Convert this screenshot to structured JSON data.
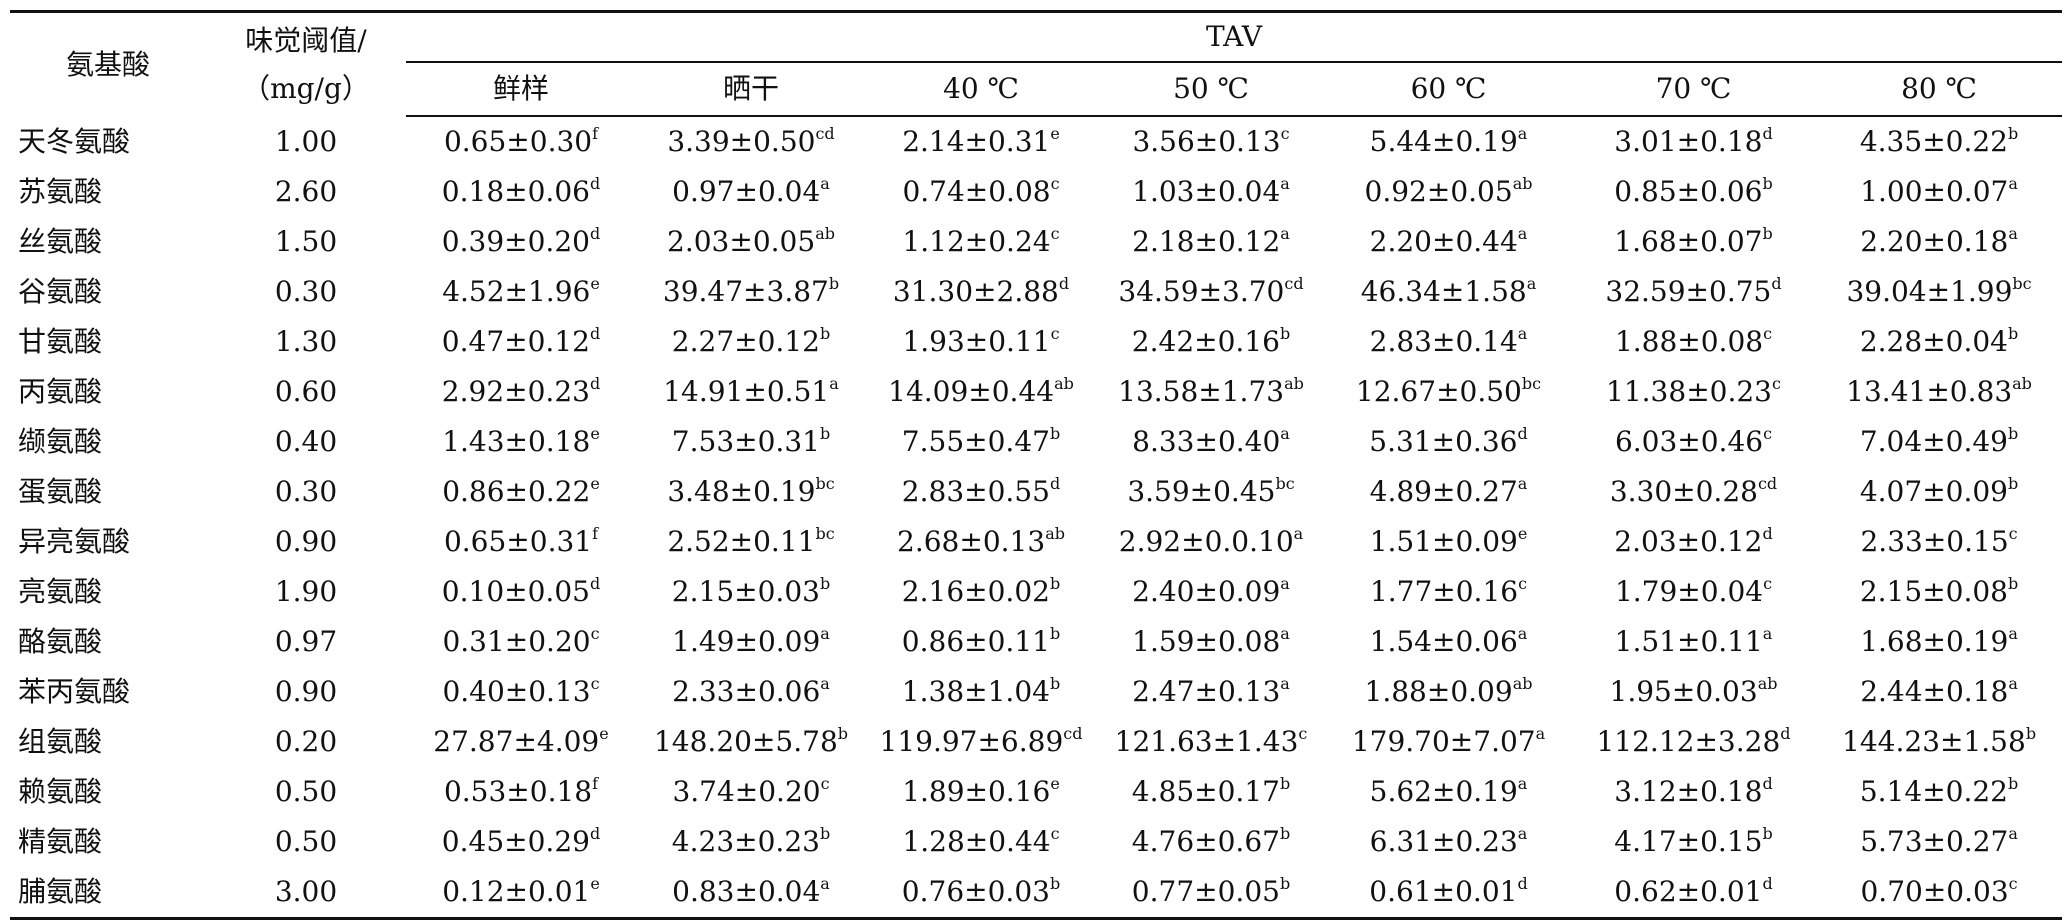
{
  "headers": {
    "amino_acid": "氨基酸",
    "threshold_line1": "味觉阈值/",
    "threshold_line2": "（mg/g）",
    "tav": "TAV",
    "conditions": [
      "鲜样",
      "晒干",
      "40 ℃",
      "50 ℃",
      "60 ℃",
      "70 ℃",
      "80 ℃"
    ]
  },
  "rows": [
    {
      "name": "天冬氨酸",
      "threshold": "1.00",
      "cells": [
        {
          "v": "0.65±0.30",
          "s": "f"
        },
        {
          "v": "3.39±0.50",
          "s": "cd"
        },
        {
          "v": "2.14±0.31",
          "s": "e"
        },
        {
          "v": "3.56±0.13",
          "s": "c"
        },
        {
          "v": "5.44±0.19",
          "s": "a"
        },
        {
          "v": "3.01±0.18",
          "s": "d"
        },
        {
          "v": "4.35±0.22",
          "s": "b"
        }
      ]
    },
    {
      "name": "苏氨酸",
      "threshold": "2.60",
      "cells": [
        {
          "v": "0.18±0.06",
          "s": "d"
        },
        {
          "v": "0.97±0.04",
          "s": "a"
        },
        {
          "v": "0.74±0.08",
          "s": "c"
        },
        {
          "v": "1.03±0.04",
          "s": "a"
        },
        {
          "v": "0.92±0.05",
          "s": "ab"
        },
        {
          "v": "0.85±0.06",
          "s": "b"
        },
        {
          "v": "1.00±0.07",
          "s": "a"
        }
      ]
    },
    {
      "name": "丝氨酸",
      "threshold": "1.50",
      "cells": [
        {
          "v": "0.39±0.20",
          "s": "d"
        },
        {
          "v": "2.03±0.05",
          "s": "ab"
        },
        {
          "v": "1.12±0.24",
          "s": "c"
        },
        {
          "v": "2.18±0.12",
          "s": "a"
        },
        {
          "v": "2.20±0.44",
          "s": "a"
        },
        {
          "v": "1.68±0.07",
          "s": "b"
        },
        {
          "v": "2.20±0.18",
          "s": "a"
        }
      ]
    },
    {
      "name": "谷氨酸",
      "threshold": "0.30",
      "cells": [
        {
          "v": "4.52±1.96",
          "s": "e"
        },
        {
          "v": "39.47±3.87",
          "s": "b"
        },
        {
          "v": "31.30±2.88",
          "s": "d"
        },
        {
          "v": "34.59±3.70",
          "s": "cd"
        },
        {
          "v": "46.34±1.58",
          "s": "a"
        },
        {
          "v": "32.59±0.75",
          "s": "d"
        },
        {
          "v": "39.04±1.99",
          "s": "bc"
        }
      ]
    },
    {
      "name": "甘氨酸",
      "threshold": "1.30",
      "cells": [
        {
          "v": "0.47±0.12",
          "s": "d"
        },
        {
          "v": "2.27±0.12",
          "s": "b"
        },
        {
          "v": "1.93±0.11",
          "s": "c"
        },
        {
          "v": "2.42±0.16",
          "s": "b"
        },
        {
          "v": "2.83±0.14",
          "s": "a"
        },
        {
          "v": "1.88±0.08",
          "s": "c"
        },
        {
          "v": "2.28±0.04",
          "s": "b"
        }
      ]
    },
    {
      "name": "丙氨酸",
      "threshold": "0.60",
      "cells": [
        {
          "v": "2.92±0.23",
          "s": "d"
        },
        {
          "v": "14.91±0.51",
          "s": "a"
        },
        {
          "v": "14.09±0.44",
          "s": "ab"
        },
        {
          "v": "13.58±1.73",
          "s": "ab"
        },
        {
          "v": "12.67±0.50",
          "s": "bc"
        },
        {
          "v": "11.38±0.23",
          "s": "c"
        },
        {
          "v": "13.41±0.83",
          "s": "ab"
        }
      ]
    },
    {
      "name": "缬氨酸",
      "threshold": "0.40",
      "cells": [
        {
          "v": "1.43±0.18",
          "s": "e"
        },
        {
          "v": "7.53±0.31",
          "s": "b"
        },
        {
          "v": "7.55±0.47",
          "s": "b"
        },
        {
          "v": "8.33±0.40",
          "s": "a"
        },
        {
          "v": "5.31±0.36",
          "s": "d"
        },
        {
          "v": "6.03±0.46",
          "s": "c"
        },
        {
          "v": "7.04±0.49",
          "s": "b"
        }
      ]
    },
    {
      "name": "蛋氨酸",
      "threshold": "0.30",
      "cells": [
        {
          "v": "0.86±0.22",
          "s": "e"
        },
        {
          "v": "3.48±0.19",
          "s": "bc"
        },
        {
          "v": "2.83±0.55",
          "s": "d"
        },
        {
          "v": "3.59±0.45",
          "s": "bc"
        },
        {
          "v": "4.89±0.27",
          "s": "a"
        },
        {
          "v": "3.30±0.28",
          "s": "cd"
        },
        {
          "v": "4.07±0.09",
          "s": "b"
        }
      ]
    },
    {
      "name": "异亮氨酸",
      "threshold": "0.90",
      "cells": [
        {
          "v": "0.65±0.31",
          "s": "f"
        },
        {
          "v": "2.52±0.11",
          "s": "bc"
        },
        {
          "v": "2.68±0.13",
          "s": "ab"
        },
        {
          "v": "2.92±0.0.10",
          "s": "a"
        },
        {
          "v": "1.51±0.09",
          "s": "e"
        },
        {
          "v": "2.03±0.12",
          "s": "d"
        },
        {
          "v": "2.33±0.15",
          "s": "c"
        }
      ]
    },
    {
      "name": "亮氨酸",
      "threshold": "1.90",
      "cells": [
        {
          "v": "0.10±0.05",
          "s": "d"
        },
        {
          "v": "2.15±0.03",
          "s": "b"
        },
        {
          "v": "2.16±0.02",
          "s": "b"
        },
        {
          "v": "2.40±0.09",
          "s": "a"
        },
        {
          "v": "1.77±0.16",
          "s": "c"
        },
        {
          "v": "1.79±0.04",
          "s": "c"
        },
        {
          "v": "2.15±0.08",
          "s": "b"
        }
      ]
    },
    {
      "name": "酪氨酸",
      "threshold": "0.97",
      "cells": [
        {
          "v": "0.31±0.20",
          "s": "c"
        },
        {
          "v": "1.49±0.09",
          "s": "a"
        },
        {
          "v": "0.86±0.11",
          "s": "b"
        },
        {
          "v": "1.59±0.08",
          "s": "a"
        },
        {
          "v": "1.54±0.06",
          "s": "a"
        },
        {
          "v": "1.51±0.11",
          "s": "a"
        },
        {
          "v": "1.68±0.19",
          "s": "a"
        }
      ]
    },
    {
      "name": "苯丙氨酸",
      "threshold": "0.90",
      "cells": [
        {
          "v": "0.40±0.13",
          "s": "c"
        },
        {
          "v": "2.33±0.06",
          "s": "a"
        },
        {
          "v": "1.38±1.04",
          "s": "b"
        },
        {
          "v": "2.47±0.13",
          "s": "a"
        },
        {
          "v": "1.88±0.09",
          "s": "ab"
        },
        {
          "v": "1.95±0.03",
          "s": "ab"
        },
        {
          "v": "2.44±0.18",
          "s": "a"
        }
      ]
    },
    {
      "name": "组氨酸",
      "threshold": "0.20",
      "cells": [
        {
          "v": "27.87±4.09",
          "s": "e"
        },
        {
          "v": "148.20±5.78",
          "s": "b"
        },
        {
          "v": "119.97±6.89",
          "s": "cd"
        },
        {
          "v": "121.63±1.43",
          "s": "c"
        },
        {
          "v": "179.70±7.07",
          "s": "a"
        },
        {
          "v": "112.12±3.28",
          "s": "d"
        },
        {
          "v": "144.23±1.58",
          "s": "b"
        }
      ]
    },
    {
      "name": "赖氨酸",
      "threshold": "0.50",
      "cells": [
        {
          "v": "0.53±0.18",
          "s": "f"
        },
        {
          "v": "3.74±0.20",
          "s": "c"
        },
        {
          "v": "1.89±0.16",
          "s": "e"
        },
        {
          "v": "4.85±0.17",
          "s": "b"
        },
        {
          "v": "5.62±0.19",
          "s": "a"
        },
        {
          "v": "3.12±0.18",
          "s": "d"
        },
        {
          "v": "5.14±0.22",
          "s": "b"
        }
      ]
    },
    {
      "name": "精氨酸",
      "threshold": "0.50",
      "cells": [
        {
          "v": "0.45±0.29",
          "s": "d"
        },
        {
          "v": "4.23±0.23",
          "s": "b"
        },
        {
          "v": "1.28±0.44",
          "s": "c"
        },
        {
          "v": "4.76±0.67",
          "s": "b"
        },
        {
          "v": "6.31±0.23",
          "s": "a"
        },
        {
          "v": "4.17±0.15",
          "s": "b"
        },
        {
          "v": "5.73±0.27",
          "s": "a"
        }
      ]
    },
    {
      "name": "脯氨酸",
      "threshold": "3.00",
      "cells": [
        {
          "v": "0.12±0.01",
          "s": "e"
        },
        {
          "v": "0.83±0.04",
          "s": "a"
        },
        {
          "v": "0.76±0.03",
          "s": "b"
        },
        {
          "v": "0.77±0.05",
          "s": "b"
        },
        {
          "v": "0.61±0.01",
          "s": "d"
        },
        {
          "v": "0.62±0.01",
          "s": "d"
        },
        {
          "v": "0.70±0.03",
          "s": "c"
        }
      ]
    }
  ]
}
